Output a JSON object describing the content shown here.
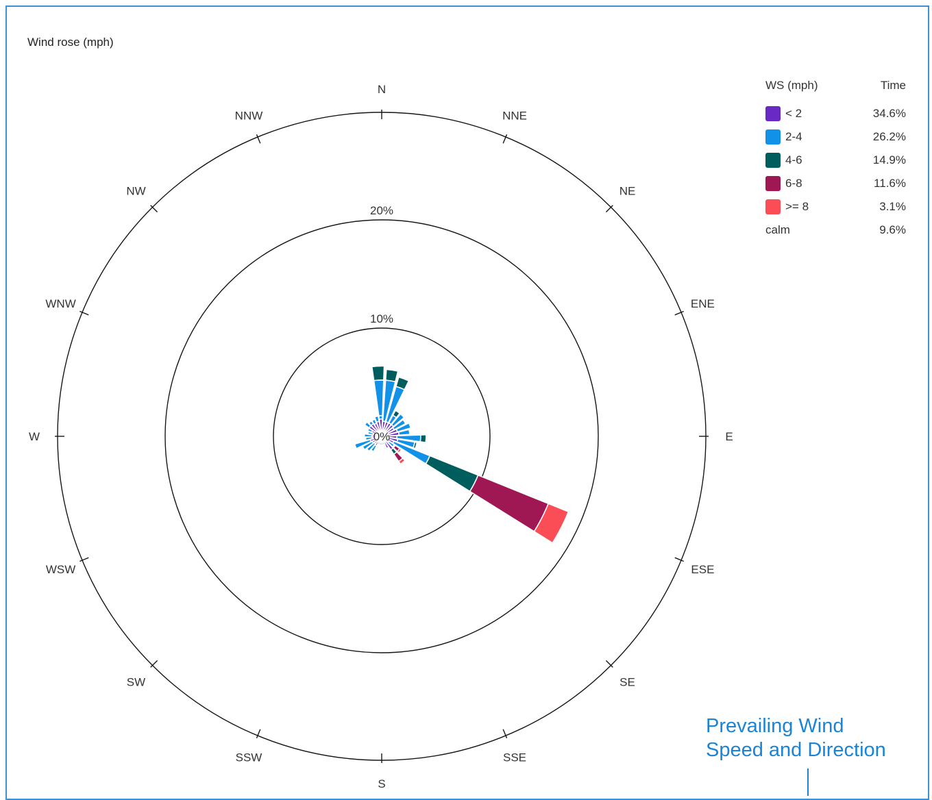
{
  "header": {
    "title": "Wind rose (mph)"
  },
  "chart_data": {
    "type": "wind-rose",
    "title": "Wind rose (mph)",
    "directions": [
      "N",
      "NNE",
      "NE",
      "ENE",
      "E",
      "ESE",
      "SE",
      "SSE",
      "S",
      "SSW",
      "SW",
      "WSW",
      "W",
      "WNW",
      "NW",
      "NNW"
    ],
    "sector_angles_deg": [
      -3,
      9,
      21,
      33,
      45,
      57,
      69,
      81,
      93,
      105,
      117,
      129,
      141,
      153,
      165,
      177,
      189,
      201,
      213,
      225,
      237,
      249,
      261,
      273,
      285,
      297,
      309,
      321,
      333,
      345,
      357
    ],
    "series": [
      {
        "name": "< 2",
        "color": "#6929c4",
        "values": [
          1.6,
          1.4,
          1.4,
          1.4,
          1.4,
          1.3,
          1.5,
          1.6,
          1.4,
          1.5,
          1.2,
          0.8,
          1.5,
          1.2,
          0.8,
          0.8,
          0.8,
          0.8,
          1.0,
          0.9,
          1.0,
          1.1,
          0.9,
          0.9,
          0.8,
          1.0,
          1.4,
          1.4,
          1.3,
          1.4,
          1.6
        ]
      },
      {
        "name": "2-4",
        "color": "#1192e8",
        "values": [
          3.6,
          3.8,
          3.4,
          0.8,
          1.3,
          1.2,
          1.3,
          1.0,
          2.2,
          1.6,
          3.6,
          0.6,
          0,
          0,
          0,
          0,
          0,
          0,
          0.6,
          0.9,
          1.0,
          1.5,
          0.6,
          0.7,
          0.5,
          0.4,
          0.5,
          0.3,
          0.4,
          0.5,
          0.3
        ]
      },
      {
        "name": "4-6",
        "color": "#005d5d",
        "values": [
          1.3,
          1.0,
          0.9,
          0.5,
          0.1,
          0.1,
          0.1,
          0,
          0.5,
          0.2,
          4.8,
          0.1,
          0.5,
          0,
          0,
          0,
          0,
          0,
          0,
          0,
          0,
          0,
          0,
          0,
          0,
          0,
          0,
          0,
          0,
          0,
          0
        ]
      },
      {
        "name": "6-8",
        "color": "#9f1853",
        "values": [
          0.1,
          0,
          0,
          0,
          0,
          0,
          0,
          0,
          0,
          0,
          7.0,
          0.5,
          0.8,
          0,
          0,
          0,
          0,
          0,
          0,
          0,
          0,
          0,
          0,
          0,
          0,
          0,
          0,
          0,
          0,
          0,
          0
        ]
      },
      {
        "name": ">= 8",
        "color": "#fa4d56",
        "values": [
          0,
          0,
          0,
          0,
          0,
          0,
          0,
          0,
          0,
          0,
          2.0,
          0.2,
          0.3,
          0,
          0,
          0,
          0,
          0,
          0,
          0,
          0,
          0,
          0,
          0,
          0,
          0,
          0,
          0,
          0,
          0,
          0
        ]
      }
    ],
    "radial_ticks": [
      {
        "value": 0,
        "label": "0%"
      },
      {
        "value": 10,
        "label": "10%"
      },
      {
        "value": 20,
        "label": "20%"
      }
    ],
    "rmax": 30,
    "legend": {
      "header_left": "WS (mph)",
      "header_right": "Time",
      "placement": "top-right",
      "items": [
        {
          "label": "< 2",
          "value": "34.6%",
          "color": "#6929c4"
        },
        {
          "label": "2-4",
          "value": "26.2%",
          "color": "#1192e8"
        },
        {
          "label": "4-6",
          "value": "14.9%",
          "color": "#005d5d"
        },
        {
          "label": "6-8",
          "value": "11.6%",
          "color": "#9f1853"
        },
        {
          "label": ">= 8",
          "value": "3.1%",
          "color": "#fa4d56"
        }
      ],
      "calm_label": "calm",
      "calm_value": "9.6%"
    }
  },
  "annotation": {
    "line1": "Prevailing Wind",
    "line2": "Speed and Direction"
  }
}
